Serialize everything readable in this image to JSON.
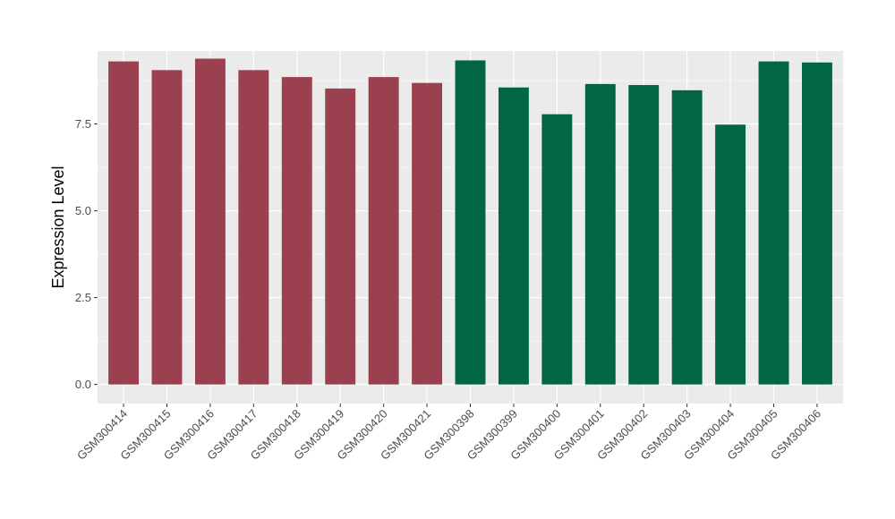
{
  "chart_data": {
    "type": "bar",
    "title": "",
    "xlabel": "",
    "ylabel": "Expression Level",
    "ylim": [
      -0.55,
      9.6
    ],
    "yticks": [
      0.0,
      2.5,
      5.0,
      7.5
    ],
    "ytick_labels": [
      "0.0",
      "2.5",
      "5.0",
      "7.5"
    ],
    "grid": true,
    "legend": "none",
    "categories": [
      "GSM300414",
      "GSM300415",
      "GSM300416",
      "GSM300417",
      "GSM300418",
      "GSM300419",
      "GSM300420",
      "GSM300421",
      "GSM300398",
      "GSM300399",
      "GSM300400",
      "GSM300401",
      "GSM300402",
      "GSM300403",
      "GSM300404",
      "GSM300405",
      "GSM300406"
    ],
    "values": [
      9.3,
      9.05,
      9.38,
      9.05,
      8.85,
      8.52,
      8.85,
      8.68,
      9.33,
      8.55,
      7.78,
      8.65,
      8.62,
      8.47,
      7.48,
      9.3,
      9.27
    ],
    "bar_colors": [
      "#9b404f",
      "#9b404f",
      "#9b404f",
      "#9b404f",
      "#9b404f",
      "#9b404f",
      "#9b404f",
      "#9b404f",
      "#006644",
      "#006644",
      "#006644",
      "#006644",
      "#006644",
      "#006644",
      "#006644",
      "#006644",
      "#006644"
    ],
    "panel_background": "#ebebeb",
    "grid_color": "#ffffff"
  }
}
